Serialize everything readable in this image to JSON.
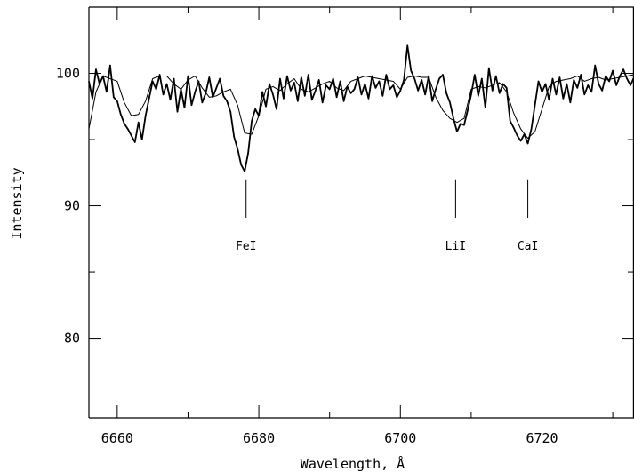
{
  "chart_data": {
    "type": "line",
    "title": "",
    "xlabel": "Wavelength, Å",
    "ylabel": "Intensity",
    "xlim": [
      6656,
      6733
    ],
    "ylim": [
      74,
      105
    ],
    "x_ticks": [
      6660,
      6680,
      6700,
      6720
    ],
    "y_ticks": [
      80,
      90,
      100
    ],
    "x_minor_ticks": [
      6670,
      6690,
      6710,
      6730
    ],
    "y_minor_ticks": [
      85,
      95
    ],
    "grid": false,
    "series": [
      {
        "style": "thick",
        "color": "#000000",
        "x": [
          6656,
          6656.5,
          6657,
          6657.5,
          6658,
          6658.5,
          6659,
          6659.5,
          6660,
          6660.5,
          6661,
          6661.5,
          6662,
          6662.5,
          6663,
          6663.5,
          6664,
          6664.5,
          6665,
          6665.5,
          6666,
          6666.5,
          6667,
          6667.5,
          6668,
          6668.5,
          6669,
          6669.5,
          6670,
          6670.5,
          6671,
          6671.5,
          6672,
          6672.5,
          6673,
          6673.5,
          6674,
          6674.5,
          6675,
          6675.5,
          6676,
          6676.5,
          6677,
          6677.5,
          6678,
          6678.5,
          6679,
          6679.5,
          6680,
          6680.5,
          6681,
          6681.5,
          6682,
          6682.5,
          6683,
          6683.5,
          6684,
          6684.5,
          6685,
          6685.5,
          6686,
          6686.5,
          6687,
          6687.5,
          6688,
          6688.5,
          6689,
          6689.5,
          6690,
          6690.5,
          6691,
          6691.5,
          6692,
          6692.5,
          6693,
          6693.5,
          6694,
          6694.5,
          6695,
          6695.5,
          6696,
          6696.5,
          6697,
          6697.5,
          6698,
          6698.5,
          6699,
          6699.5,
          6700,
          6700.5,
          6701,
          6701.5,
          6702,
          6702.5,
          6703,
          6703.5,
          6704,
          6704.5,
          6705,
          6705.5,
          6706,
          6706.5,
          6707,
          6707.5,
          6708,
          6708.5,
          6709,
          6709.5,
          6710,
          6710.5,
          6711,
          6711.5,
          6712,
          6712.5,
          6713,
          6713.5,
          6714,
          6714.5,
          6715,
          6715.5,
          6716,
          6716.5,
          6717,
          6717.5,
          6718,
          6718.5,
          6719,
          6719.5,
          6720,
          6720.5,
          6721,
          6721.5,
          6722,
          6722.5,
          6723,
          6723.5,
          6724,
          6724.5,
          6725,
          6725.5,
          6726,
          6726.5,
          6727,
          6727.5,
          6728,
          6728.5,
          6729,
          6729.5,
          6730,
          6730.5,
          6731,
          6731.5,
          6732,
          6732.5,
          6733
        ],
        "y": [
          99.4,
          98.1,
          100.3,
          99.2,
          99.8,
          98.6,
          100.6,
          98.2,
          97.9,
          96.9,
          96.2,
          95.8,
          95.3,
          94.8,
          96.3,
          95.0,
          96.8,
          98.1,
          99.4,
          98.8,
          99.9,
          98.4,
          99.2,
          98.0,
          99.6,
          97.1,
          98.8,
          97.4,
          99.8,
          97.6,
          98.6,
          99.4,
          97.8,
          98.5,
          99.7,
          98.2,
          98.9,
          99.6,
          98.3,
          97.9,
          97.1,
          95.2,
          94.3,
          93.1,
          92.6,
          94.0,
          96.4,
          97.3,
          96.8,
          98.6,
          97.5,
          99.2,
          98.4,
          97.3,
          99.6,
          98.1,
          99.8,
          98.7,
          99.3,
          97.9,
          99.7,
          98.3,
          99.9,
          98.0,
          98.7,
          99.5,
          97.8,
          99.1,
          98.8,
          99.6,
          98.2,
          99.4,
          97.9,
          99.0,
          98.5,
          98.8,
          99.7,
          98.4,
          99.2,
          98.1,
          99.8,
          98.9,
          99.4,
          98.3,
          99.9,
          98.8,
          99.1,
          98.2,
          98.7,
          99.5,
          102.1,
          100.2,
          99.6,
          98.7,
          99.5,
          98.4,
          99.8,
          97.9,
          98.8,
          99.6,
          99.9,
          98.5,
          97.8,
          96.6,
          95.6,
          96.2,
          96.1,
          97.2,
          98.4,
          99.9,
          98.3,
          99.6,
          97.4,
          100.4,
          98.7,
          99.8,
          98.5,
          99.2,
          98.9,
          96.4,
          95.9,
          95.3,
          94.9,
          95.4,
          94.7,
          95.8,
          97.6,
          99.4,
          98.6,
          99.2,
          98.0,
          99.6,
          98.4,
          99.7,
          98.1,
          99.2,
          97.8,
          99.5,
          98.9,
          99.9,
          98.4,
          99.1,
          98.6,
          100.6,
          99.2,
          98.7,
          99.8,
          99.4,
          100.2,
          99.1,
          99.8,
          100.3,
          99.6,
          99.1,
          99.7
        ]
      },
      {
        "style": "thin",
        "color": "#000000",
        "x": [
          6656,
          6657,
          6658,
          6659,
          6660,
          6661,
          6662,
          6663,
          6664,
          6665,
          6666,
          6667,
          6668,
          6669,
          6670,
          6671,
          6672,
          6673,
          6674,
          6675,
          6676,
          6677,
          6678,
          6679,
          6680,
          6681,
          6682,
          6683,
          6684,
          6685,
          6686,
          6687,
          6688,
          6689,
          6690,
          6691,
          6692,
          6693,
          6694,
          6695,
          6696,
          6697,
          6698,
          6699,
          6700,
          6701,
          6702,
          6703,
          6704,
          6705,
          6706,
          6707,
          6708,
          6709,
          6710,
          6711,
          6712,
          6713,
          6714,
          6715,
          6716,
          6717,
          6718,
          6719,
          6720,
          6721,
          6722,
          6723,
          6724,
          6725,
          6726,
          6727,
          6728,
          6729,
          6730,
          6731,
          6732,
          6733
        ],
        "y": [
          95.8,
          98.6,
          99.8,
          99.6,
          99.4,
          97.8,
          96.8,
          96.9,
          97.9,
          99.6,
          99.8,
          99.8,
          99.2,
          98.8,
          99.5,
          99.8,
          98.9,
          98.2,
          98.3,
          98.6,
          98.8,
          97.6,
          95.5,
          95.4,
          96.8,
          98.8,
          99.0,
          98.7,
          99.2,
          99.6,
          98.8,
          98.6,
          98.9,
          99.2,
          99.4,
          98.9,
          98.7,
          99.4,
          99.6,
          99.8,
          99.7,
          99.6,
          99.5,
          99.4,
          98.8,
          99.7,
          99.8,
          99.7,
          99.7,
          98.2,
          97.2,
          96.6,
          96.3,
          96.6,
          98.8,
          99.0,
          98.9,
          99.1,
          99.3,
          98.6,
          97.0,
          95.8,
          95.1,
          95.6,
          97.3,
          99.0,
          99.4,
          99.5,
          99.6,
          99.8,
          99.4,
          99.6,
          99.7,
          99.5,
          99.6,
          99.7,
          99.8,
          99.9
        ]
      }
    ],
    "annotations": [
      {
        "text": "FeI",
        "x": 6678.2
      },
      {
        "text": "LiI",
        "x": 6707.8
      },
      {
        "text": "CaI",
        "x": 6718.0
      }
    ],
    "line_marker_range": [
      89.1,
      92.0
    ]
  }
}
